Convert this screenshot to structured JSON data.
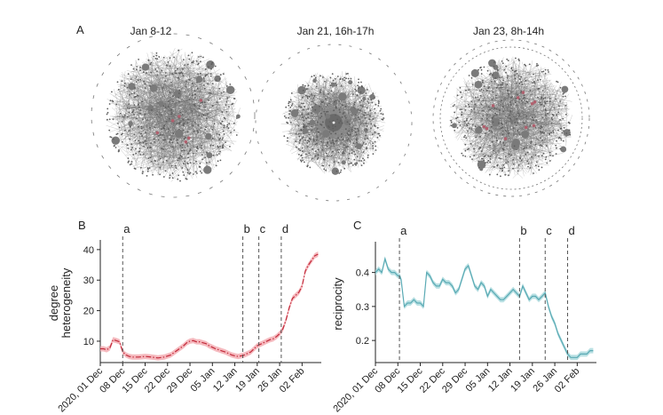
{
  "panel_a": {
    "letter": "A",
    "network_titles": [
      "Jan 8-12",
      "Jan 21, 16h-17h",
      "Jan 23, 8h-14h"
    ]
  },
  "colors": {
    "network_gray": "#6f6f6f",
    "network_highlight": "#b0606e",
    "line_red": "#c22a3a",
    "band_red": "#f3a8ae",
    "line_teal": "#5aaab4",
    "band_teal": "#a8d8dc",
    "vline": "#555555"
  },
  "chart_data": [
    {
      "type": "line",
      "panel_letter": "B",
      "ylabel_lines": [
        "degree",
        "heterogeneity"
      ],
      "xlabel": "",
      "x_tick_labels": [
        "2020, 01 Dec",
        "08 Dec",
        "15 Dec",
        "22 Dec",
        "29 Dec",
        "05 Jan",
        "12 Jan",
        "19 Jan",
        "26 Jan",
        "02 Feb"
      ],
      "x_tick_days": [
        0,
        7,
        14,
        21,
        28,
        35,
        42,
        49,
        56,
        63
      ],
      "xlim_days": [
        0,
        69
      ],
      "y_ticks": [
        10,
        20,
        30,
        40
      ],
      "ylim": [
        3,
        42
      ],
      "event_lines": [
        {
          "label": "a",
          "day": 7
        },
        {
          "label": "b",
          "day": 44.5
        },
        {
          "label": "c",
          "day": 49.5
        },
        {
          "label": "d",
          "day": 56.5
        }
      ],
      "line_style": "dashdot",
      "x_days": [
        0,
        1,
        2,
        3,
        4,
        5,
        6,
        7,
        8,
        9,
        10,
        12,
        14,
        16,
        18,
        20,
        22,
        24,
        26,
        27,
        28,
        29,
        30,
        31,
        32,
        33,
        34,
        35,
        36,
        37,
        38,
        39,
        40,
        41,
        42,
        43,
        44,
        45,
        46,
        47,
        48,
        49,
        50,
        51,
        52,
        53,
        54,
        55,
        56,
        57,
        58,
        59,
        60,
        61,
        62,
        63,
        64,
        65,
        66,
        67,
        68
      ],
      "values": [
        7.5,
        7.5,
        7.2,
        7.8,
        10.5,
        10.2,
        9.8,
        6.5,
        5.5,
        5.0,
        4.8,
        4.8,
        5.0,
        4.8,
        4.5,
        4.8,
        5.5,
        7.0,
        8.5,
        9.5,
        10.0,
        10.2,
        9.8,
        9.8,
        9.5,
        9.2,
        8.5,
        8.0,
        7.5,
        7.2,
        6.8,
        6.5,
        6.0,
        5.5,
        5.2,
        5.0,
        5.2,
        5.5,
        6.0,
        6.5,
        7.5,
        8.5,
        9.0,
        9.5,
        10.0,
        10.5,
        10.8,
        11.5,
        12.5,
        14.0,
        17.0,
        21.0,
        24.0,
        25.0,
        26.0,
        28.0,
        33.0,
        35.0,
        36.5,
        38.0,
        38.5
      ],
      "color": "#c22a3a",
      "band_color": "#f3a8ae"
    },
    {
      "type": "line",
      "panel_letter": "C",
      "ylabel": "reciprocity",
      "xlabel": "",
      "x_tick_labels": [
        "2020, 01 Dec",
        "08 Dec",
        "15 Dec",
        "22 Dec",
        "29 Dec",
        "05 Jan",
        "12 Jan",
        "19 Jan",
        "26 Jan",
        "02 Feb"
      ],
      "x_tick_days": [
        0,
        7,
        14,
        21,
        28,
        35,
        42,
        49,
        56,
        63
      ],
      "xlim_days": [
        0,
        69
      ],
      "y_ticks": [
        0.2,
        0.3,
        0.4
      ],
      "ylim": [
        0.135,
        0.48
      ],
      "event_lines": [
        {
          "label": "a",
          "day": 7.5
        },
        {
          "label": "b",
          "day": 45
        },
        {
          "label": "c",
          "day": 53
        },
        {
          "label": "d",
          "day": 60
        }
      ],
      "x_days": [
        0,
        1,
        2,
        3,
        4,
        5,
        6,
        7,
        7.5,
        8,
        9,
        10,
        11,
        12,
        13,
        14,
        15,
        16,
        17,
        18,
        19,
        20,
        21,
        22,
        23,
        24,
        25,
        26,
        27,
        28,
        29,
        30,
        31,
        32,
        33,
        34,
        35,
        36,
        37,
        38,
        39,
        40,
        41,
        42,
        43,
        44,
        45,
        46,
        47,
        48,
        49,
        50,
        51,
        52,
        53,
        54,
        55,
        56,
        57,
        58,
        59,
        60,
        61,
        62,
        63,
        64,
        65,
        66,
        67,
        68
      ],
      "values": [
        0.4,
        0.41,
        0.4,
        0.44,
        0.41,
        0.4,
        0.4,
        0.39,
        0.39,
        0.38,
        0.3,
        0.31,
        0.31,
        0.32,
        0.31,
        0.31,
        0.3,
        0.4,
        0.39,
        0.37,
        0.36,
        0.36,
        0.38,
        0.37,
        0.37,
        0.36,
        0.34,
        0.35,
        0.38,
        0.41,
        0.42,
        0.39,
        0.36,
        0.35,
        0.37,
        0.36,
        0.33,
        0.35,
        0.34,
        0.33,
        0.32,
        0.32,
        0.33,
        0.34,
        0.35,
        0.34,
        0.33,
        0.36,
        0.34,
        0.32,
        0.33,
        0.33,
        0.32,
        0.33,
        0.34,
        0.3,
        0.27,
        0.25,
        0.22,
        0.2,
        0.18,
        0.16,
        0.15,
        0.15,
        0.15,
        0.16,
        0.16,
        0.16,
        0.17,
        0.17
      ],
      "color": "#5aaab4",
      "band_color": "#a8d8dc"
    }
  ]
}
